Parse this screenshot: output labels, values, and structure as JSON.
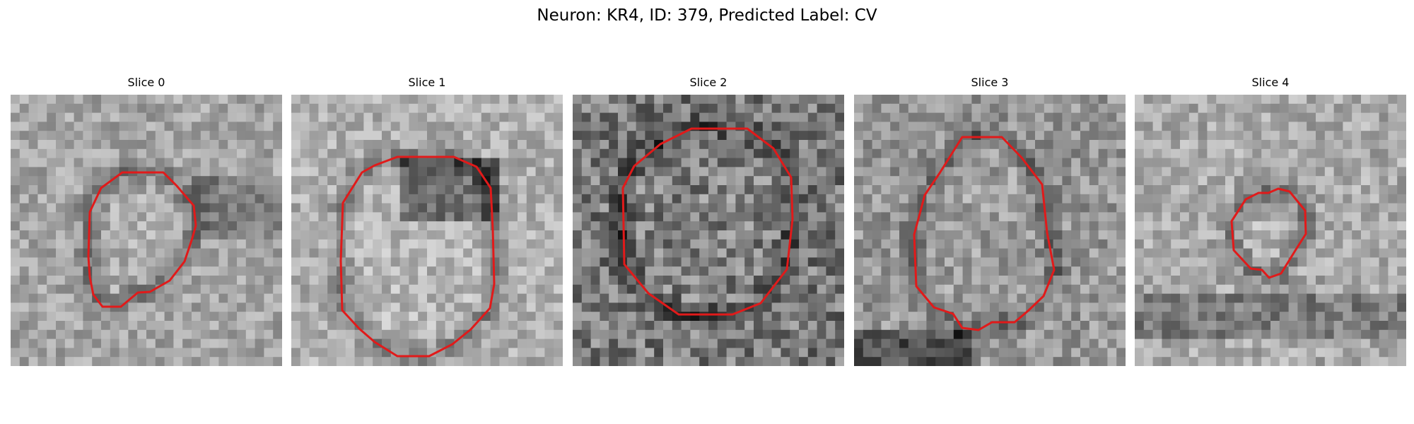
{
  "figure": {
    "title": "Neuron: KR4, ID: 379, Predicted Label: CV"
  },
  "slices": [
    {
      "title": "Slice 0"
    },
    {
      "title": "Slice 1"
    },
    {
      "title": "Slice 2"
    },
    {
      "title": "Slice 3"
    },
    {
      "title": "Slice 4"
    }
  ],
  "style": {
    "contour_color": "#e11a1a"
  }
}
